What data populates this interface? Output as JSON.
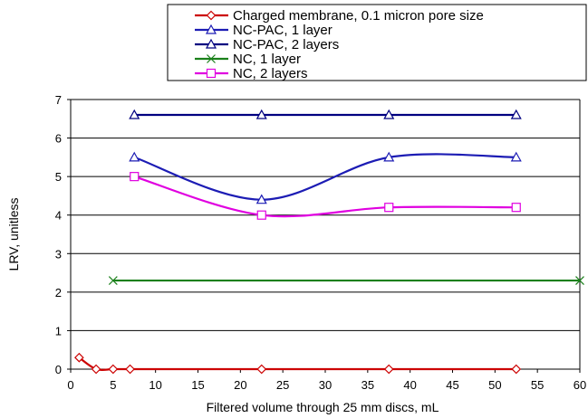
{
  "chart_data": {
    "type": "line",
    "title": "",
    "xlabel": "Filtered volume through 25 mm discs, mL",
    "ylabel": "LRV, unitless",
    "xlim": [
      0,
      60
    ],
    "ylim": [
      0,
      7
    ],
    "x_ticks": [
      "0",
      "5",
      "10",
      "15",
      "20",
      "25",
      "30",
      "35",
      "40",
      "45",
      "50",
      "55",
      "60"
    ],
    "y_ticks": [
      "0",
      "1",
      "2",
      "3",
      "4",
      "5",
      "6",
      "7"
    ],
    "grid": "horizontal",
    "legend_position": "top",
    "series": [
      {
        "name": "Charged membrane, 0.1 micron pore size",
        "color": "#cc0000",
        "marker": "diamond",
        "x": [
          1,
          3,
          5,
          7,
          22.5,
          37.5,
          52.5
        ],
        "y": [
          0.3,
          0,
          0,
          0,
          0,
          0,
          0
        ]
      },
      {
        "name": "NC-PAC, 1 layer",
        "color": "#1c1cb4",
        "marker": "triangle",
        "x": [
          7.5,
          22.5,
          37.5,
          52.5
        ],
        "y": [
          5.5,
          4.4,
          5.5,
          5.5
        ]
      },
      {
        "name": "NC-PAC, 2 layers",
        "color": "#000080",
        "marker": "triangle",
        "x": [
          7.5,
          22.5,
          37.5,
          52.5
        ],
        "y": [
          6.6,
          6.6,
          6.6,
          6.6
        ]
      },
      {
        "name": "NC, 1 layer",
        "color": "#1a801a",
        "marker": "x",
        "x": [
          5,
          60
        ],
        "y": [
          2.3,
          2.3
        ]
      },
      {
        "name": "NC, 2 layers",
        "color": "#e000e0",
        "marker": "square",
        "x": [
          7.5,
          22.5,
          37.5,
          52.5
        ],
        "y": [
          5,
          4,
          4.2,
          4.2
        ]
      }
    ]
  }
}
